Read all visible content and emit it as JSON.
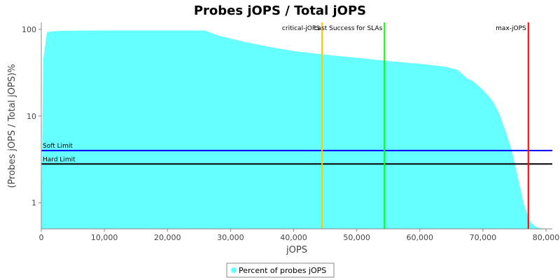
{
  "chart_data": {
    "type": "area",
    "title": "Probes jOPS / Total jOPS",
    "xlabel": "jOPS",
    "ylabel": "(Probes jOPS / Total jOPS)%",
    "xlim": [
      0,
      81000
    ],
    "ylim": [
      0.5,
      120
    ],
    "y_scale": "log",
    "grid": false,
    "x_ticks": [
      0,
      10000,
      20000,
      30000,
      40000,
      50000,
      60000,
      70000,
      80000
    ],
    "x_tick_labels": [
      "0",
      "10,000",
      "20,000",
      "30,000",
      "40,000",
      "50,000",
      "60,000",
      "70,000",
      "80,000"
    ],
    "y_ticks": [
      1,
      10,
      100
    ],
    "y_tick_labels": [
      "1",
      "10",
      "100"
    ],
    "series": [
      {
        "name": "Percent of probes jOPS",
        "color": "#66ffff",
        "x": [
          0,
          300,
          900,
          3000,
          10000,
          20000,
          25900,
          28000,
          32000,
          36000,
          40000,
          45000,
          50000,
          55000,
          60000,
          64000,
          66000,
          67500,
          68500,
          70000,
          71500,
          72500,
          73500,
          74500,
          75500,
          76500,
          77500,
          78500,
          80000,
          81000
        ],
        "y": [
          0.5,
          45,
          93,
          96,
          97,
          97,
          97,
          85,
          72,
          63,
          56,
          51,
          47,
          43,
          40,
          37,
          34,
          27,
          25,
          20,
          15,
          11,
          7,
          4.2,
          2.0,
          0.95,
          0.6,
          0.52,
          0.5,
          0.5
        ]
      }
    ],
    "markers": [
      {
        "label": "critical-jOPS",
        "x": 44500,
        "color": "#ffc800"
      },
      {
        "label": "Last Success for SLAs",
        "x": 54400,
        "color": "#00ff00"
      },
      {
        "label": "max-jOPS",
        "x": 77200,
        "color": "#ff0000"
      }
    ],
    "limits": [
      {
        "label": "Soft Limit",
        "y": 4.0,
        "color": "#0000ff"
      },
      {
        "label": "Hard Limit",
        "y": 2.8,
        "color": "#000000"
      }
    ],
    "legend": {
      "position": "bottom-center",
      "entries": [
        "Percent of probes jOPS"
      ]
    }
  }
}
